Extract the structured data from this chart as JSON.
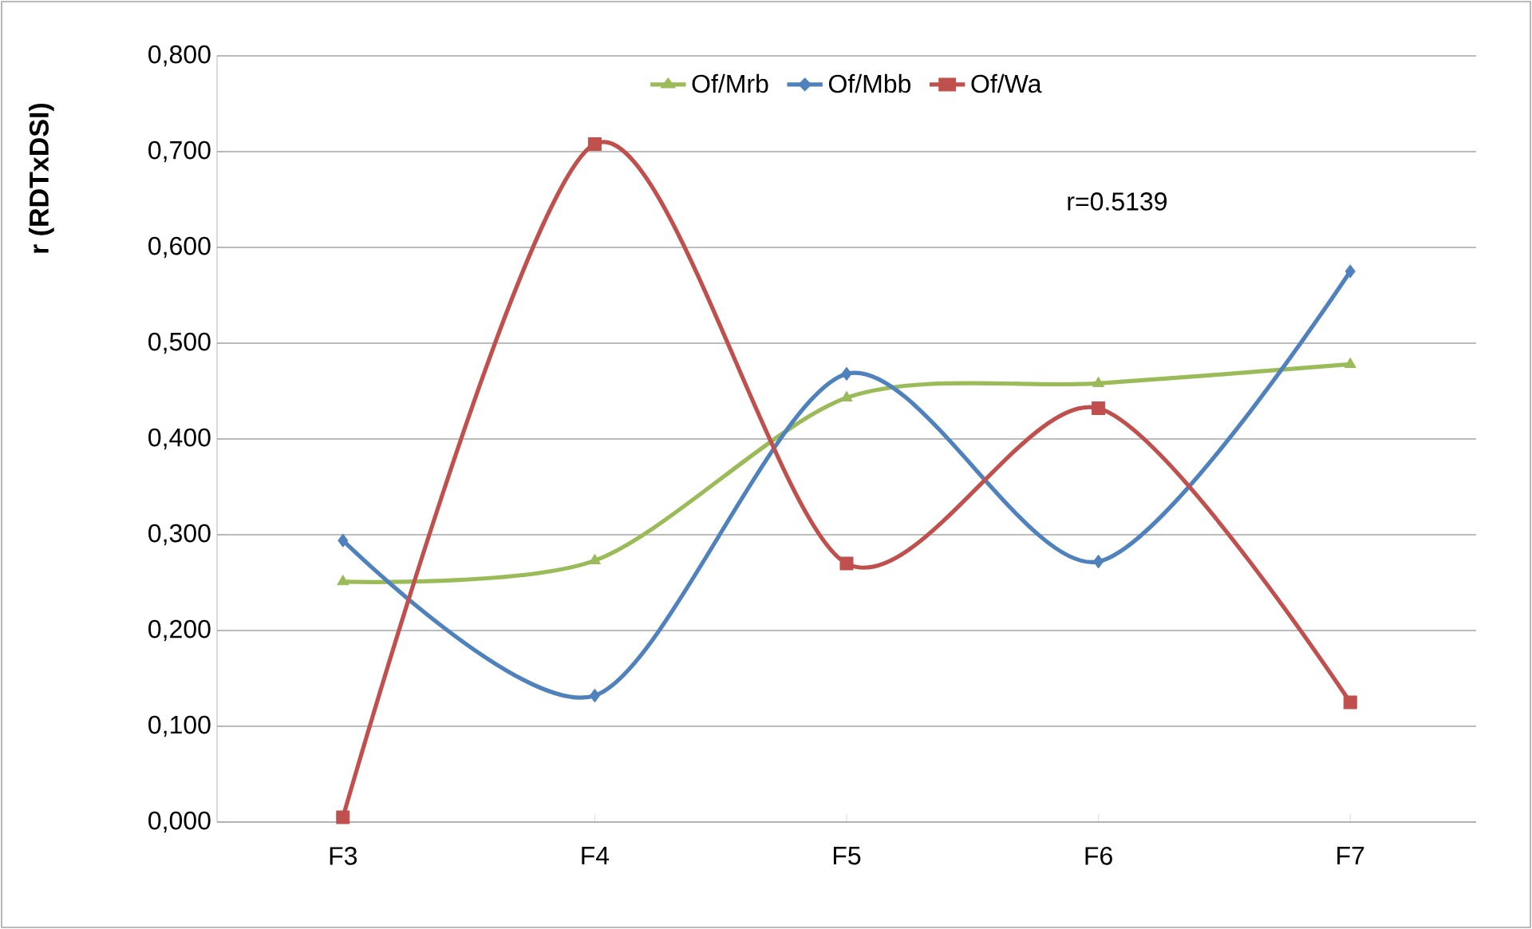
{
  "chart_data": {
    "type": "line",
    "ylabel": "r (RDTxDSI)",
    "categories": [
      "F3",
      "F4",
      "F5",
      "F6",
      "F7"
    ],
    "series": [
      {
        "name": "Of/Mrb",
        "color": "#9bbb59",
        "marker": "triangle",
        "values": [
          0.251,
          0.273,
          0.443,
          0.458,
          0.478
        ]
      },
      {
        "name": "Of/Mbb",
        "color": "#4f81bd",
        "marker": "diamond",
        "values": [
          0.294,
          0.132,
          0.468,
          0.272,
          0.575
        ]
      },
      {
        "name": "Of/Wa",
        "color": "#c0504d",
        "marker": "square",
        "values": [
          0.005,
          0.708,
          0.27,
          0.432,
          0.125
        ]
      }
    ],
    "ylim": [
      0,
      0.8
    ],
    "yticks": [
      {
        "value": 0,
        "label": "0,000"
      },
      {
        "value": 0.1,
        "label": "0,100"
      },
      {
        "value": 0.2,
        "label": "0,200"
      },
      {
        "value": 0.3,
        "label": "0,300"
      },
      {
        "value": 0.4,
        "label": "0,400"
      },
      {
        "value": 0.5,
        "label": "0,500"
      },
      {
        "value": 0.6,
        "label": "0,600"
      },
      {
        "value": 0.7,
        "label": "0,700"
      },
      {
        "value": 0.8,
        "label": "0,800"
      }
    ],
    "grid": "y",
    "legend": "top",
    "line_style": "solid",
    "annotations": [
      "r=0.5139"
    ]
  }
}
